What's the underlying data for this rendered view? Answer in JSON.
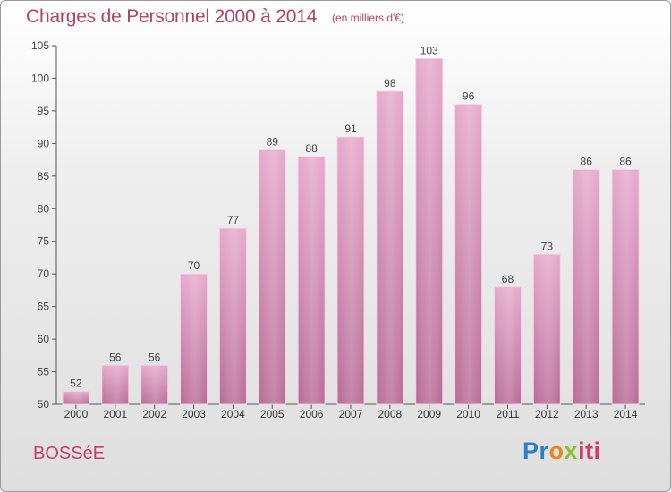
{
  "header": {
    "title": "Charges de Personnel 2000 à 2014",
    "subtitle": "(en milliers d'€)"
  },
  "footer": {
    "place": "BOSSéE",
    "logo_parts": [
      "Pr",
      "o",
      "x",
      "iti"
    ]
  },
  "colors": {
    "bar_fill_top": "#e6a9cc",
    "bar_fill_bottom": "#b86d96",
    "bar_edge": "#f4d2e4",
    "accent": "#b3406a"
  },
  "chart_data": {
    "type": "bar",
    "categories": [
      "2000",
      "2001",
      "2002",
      "2003",
      "2004",
      "2005",
      "2006",
      "2007",
      "2008",
      "2009",
      "2010",
      "2011",
      "2012",
      "2013",
      "2014"
    ],
    "values": [
      52,
      56,
      56,
      70,
      77,
      89,
      88,
      91,
      98,
      103,
      96,
      68,
      73,
      86,
      86
    ],
    "ylim": [
      50,
      105
    ],
    "yticks": [
      50,
      55,
      60,
      65,
      70,
      75,
      80,
      85,
      90,
      95,
      100,
      105
    ],
    "grid": false,
    "data_labels": true
  }
}
